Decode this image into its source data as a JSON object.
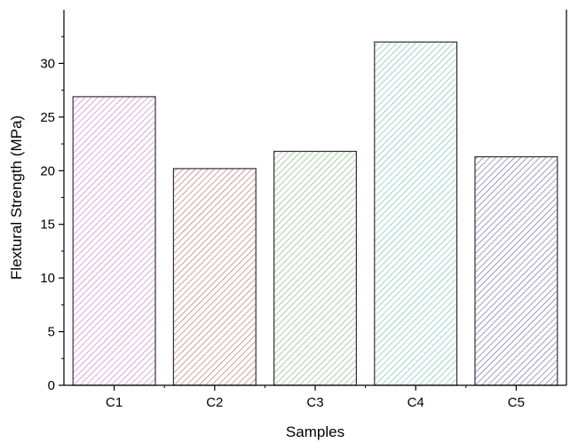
{
  "chart_data": {
    "type": "bar",
    "categories": [
      "C1",
      "C2",
      "C3",
      "C4",
      "C5"
    ],
    "values": [
      26.9,
      20.2,
      21.8,
      32.0,
      21.3
    ],
    "xlabel": "Samples",
    "ylabel": "Flextural Strength (MPa)",
    "ylim": [
      0,
      35
    ],
    "yticks": [
      0,
      5,
      10,
      15,
      20,
      25,
      30
    ],
    "grid": false,
    "legend": "none",
    "colors": [
      "#c97ad0",
      "#b56f66",
      "#7fb879",
      "#6fbfaa",
      "#6a6aa6"
    ]
  }
}
